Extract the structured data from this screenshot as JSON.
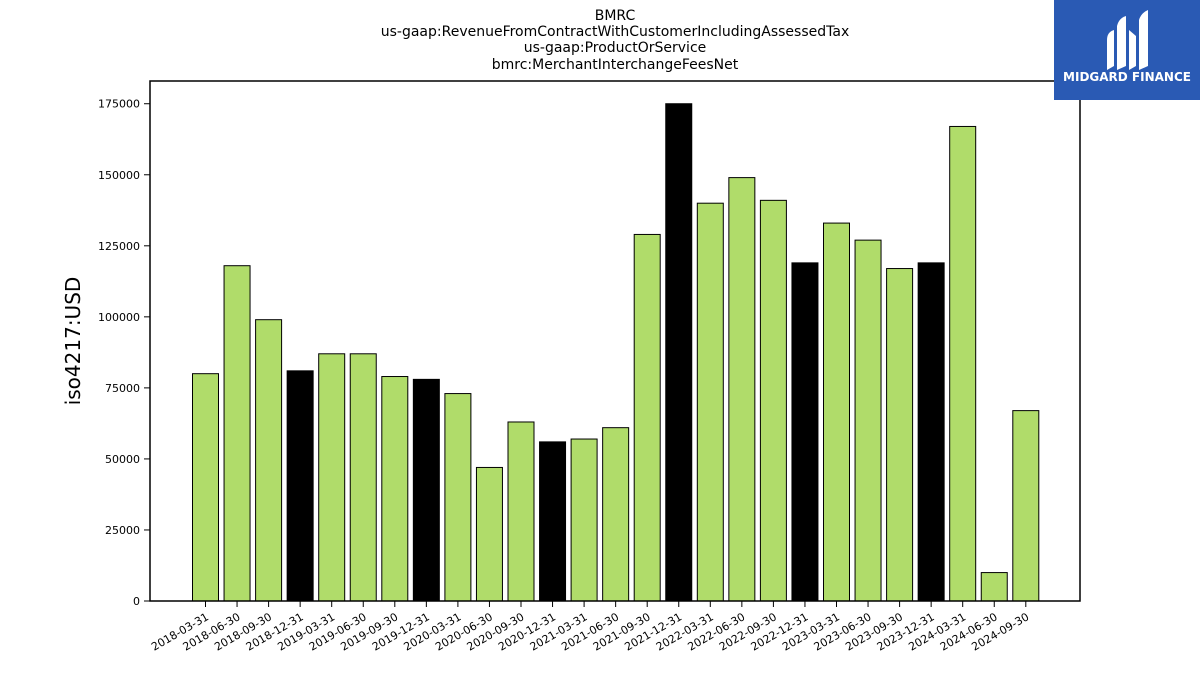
{
  "logo": {
    "text": "MIDGARD FINANCE",
    "background": "#2a5ab4"
  },
  "chart_data": {
    "type": "bar",
    "title_lines": [
      "BMRC",
      "us-gaap:RevenueFromContractWithCustomerIncludingAssessedTax",
      "us-gaap:ProductOrService",
      "bmrc:MerchantInterchangeFeesNet"
    ],
    "xlabel": "",
    "ylabel": "iso4217:USD",
    "ylim": [
      0,
      183000
    ],
    "yticks": [
      0,
      25000,
      50000,
      75000,
      100000,
      125000,
      150000,
      175000
    ],
    "grid": false,
    "colors": {
      "quarter": "#b0dc6a",
      "year_end": "#000000",
      "edge": "#000000"
    },
    "categories": [
      "2018-03-31",
      "2018-06-30",
      "2018-09-30",
      "2018-12-31",
      "2019-03-31",
      "2019-06-30",
      "2019-09-30",
      "2019-12-31",
      "2020-03-31",
      "2020-06-30",
      "2020-09-30",
      "2020-12-31",
      "2021-03-31",
      "2021-06-30",
      "2021-09-30",
      "2021-12-31",
      "2022-03-31",
      "2022-06-30",
      "2022-09-30",
      "2022-12-31",
      "2023-03-31",
      "2023-06-30",
      "2023-09-30",
      "2023-12-31",
      "2024-03-31",
      "2024-06-30",
      "2024-09-30"
    ],
    "values": [
      80000,
      118000,
      99000,
      81000,
      87000,
      87000,
      79000,
      78000,
      73000,
      47000,
      63000,
      56000,
      57000,
      61000,
      129000,
      175000,
      140000,
      149000,
      141000,
      119000,
      133000,
      127000,
      117000,
      119000,
      167000,
      10000,
      67000
    ]
  }
}
